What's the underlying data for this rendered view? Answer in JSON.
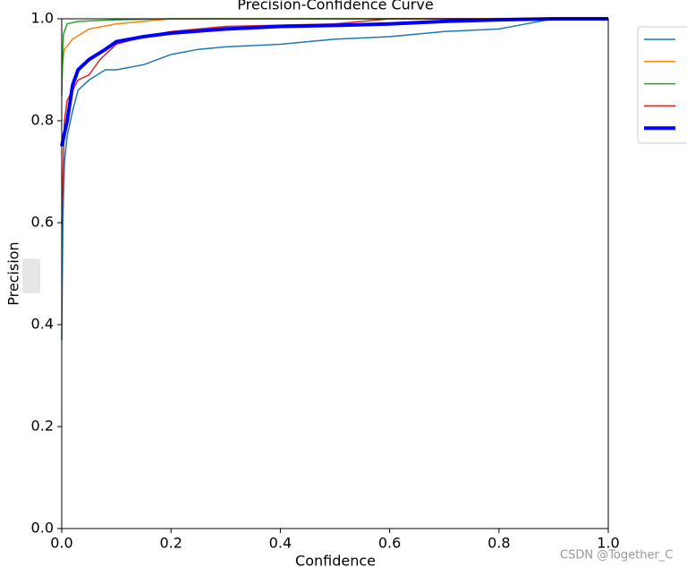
{
  "chart_data": {
    "type": "line",
    "title": "Precision-Confidence Curve",
    "x_label": "Confidence",
    "y_label": "Precision",
    "xlim": [
      0,
      1
    ],
    "ylim": [
      0,
      1
    ],
    "xticks": [
      {
        "value": 0,
        "label": "0.0"
      },
      0.2,
      0.4,
      0.6,
      0.8,
      {
        "value": 1,
        "label": "1.0"
      }
    ],
    "yticks": [
      {
        "value": 0,
        "label": "0.0"
      },
      0.2,
      0.4,
      0.6,
      0.8,
      {
        "value": 1,
        "label": "1.0"
      }
    ],
    "series": [
      {
        "color": "#1f77b4",
        "width": 1.5,
        "x": [
          0,
          0.002,
          0.005,
          0.01,
          0.02,
          0.03,
          0.05,
          0.08,
          0.1,
          0.15,
          0.2,
          0.25,
          0.3,
          0.4,
          0.5,
          0.6,
          0.7,
          0.8,
          0.85,
          0.9,
          1
        ],
        "values": [
          0.37,
          0.6,
          0.72,
          0.77,
          0.82,
          0.86,
          0.88,
          0.9,
          0.9,
          0.91,
          0.93,
          0.94,
          0.945,
          0.95,
          0.96,
          0.965,
          0.975,
          0.98,
          0.99,
          1,
          1
        ]
      },
      {
        "color": "#ff7f0e",
        "width": 1.5,
        "x": [
          0,
          0.005,
          0.02,
          0.05,
          0.1,
          0.15,
          0.2,
          0.3,
          1
        ],
        "values": [
          0.9,
          0.94,
          0.96,
          0.98,
          0.99,
          0.995,
          1,
          1,
          1
        ]
      },
      {
        "color": "#2ca02c",
        "width": 1.5,
        "x": [
          0,
          0.003,
          0.01,
          0.03,
          0.1,
          0.2,
          1
        ],
        "values": [
          0.85,
          0.97,
          0.99,
          0.995,
          0.998,
          1,
          1
        ]
      },
      {
        "color": "#d62728",
        "width": 1.5,
        "x": [
          0,
          0.005,
          0.01,
          0.03,
          0.05,
          0.07,
          0.1,
          0.15,
          0.2,
          0.3,
          0.5,
          0.6,
          1
        ],
        "values": [
          0.6,
          0.8,
          0.84,
          0.88,
          0.89,
          0.92,
          0.95,
          0.965,
          0.975,
          0.985,
          0.99,
          1,
          1
        ]
      },
      {
        "color": "#0000ff",
        "width": 4,
        "x": [
          0,
          0.01,
          0.02,
          0.03,
          0.05,
          0.08,
          0.1,
          0.15,
          0.2,
          0.3,
          0.4,
          0.5,
          0.6,
          0.7,
          0.8,
          0.9,
          1
        ],
        "values": [
          0.75,
          0.8,
          0.87,
          0.9,
          0.92,
          0.94,
          0.955,
          0.965,
          0.972,
          0.98,
          0.985,
          0.987,
          0.99,
          0.995,
          0.998,
          1,
          1
        ]
      }
    ],
    "watermark": "CSDN @Together_C"
  }
}
